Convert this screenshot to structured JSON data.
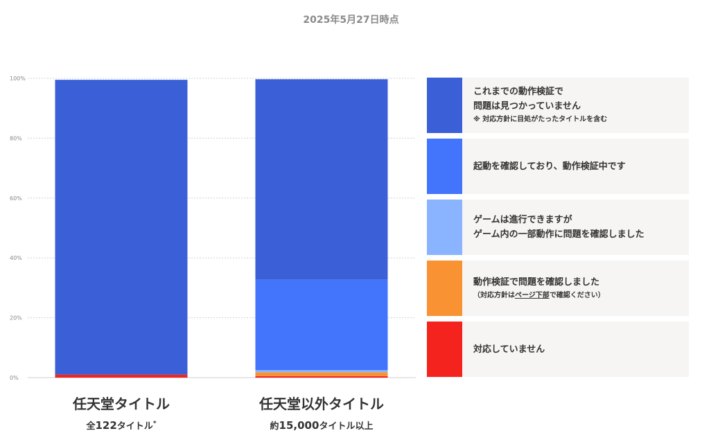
{
  "header": {
    "date": "2025年5月27日時点"
  },
  "chart_data": {
    "type": "bar",
    "stacked": true,
    "categories": [
      "任天堂タイトル",
      "任天堂以外タイトル"
    ],
    "category_subtitles": [
      {
        "prefix": "全",
        "number": "122",
        "suffix": "タイトル",
        "mark": "*"
      },
      {
        "prefix": "約",
        "number": "15,000",
        "suffix": "タイトル以上",
        "mark": ""
      }
    ],
    "ylim": [
      0,
      100
    ],
    "yticks": [
      "0%",
      "20%",
      "40%",
      "60%",
      "80%",
      "100%"
    ],
    "grid": true,
    "series": [
      {
        "name": "対応していません",
        "color": "#f5231e",
        "values": [
          1.0,
          0.5
        ]
      },
      {
        "name": "動作検証で問題を確認しました",
        "color": "#f89232",
        "values": [
          0,
          1.3
        ]
      },
      {
        "name": "ゲームは進行できますが ゲーム内の一部動作に問題を確認しました",
        "color": "#8ab4ff",
        "values": [
          0,
          0.7
        ]
      },
      {
        "name": "起動を確認しており、動作検証中です",
        "color": "#4374fc",
        "values": [
          0,
          30.2
        ]
      },
      {
        "name": "これまでの動作検証で 問題は見つかっていません",
        "color": "#3a5fd6",
        "values": [
          98.5,
          67.0
        ]
      }
    ]
  },
  "legend": [
    {
      "color": "#3a5fd6",
      "lines": [
        "これまでの動作検証で",
        "問題は見つかっていません"
      ],
      "note": "※ 対応方針に目処がたったタイトルを含む"
    },
    {
      "color": "#4374fc",
      "lines": [
        "起動を確認しており、動作検証中です"
      ],
      "note": ""
    },
    {
      "color": "#8ab4ff",
      "lines": [
        "ゲームは進行できますが",
        "ゲーム内の一部動作に問題を確認しました"
      ],
      "note": ""
    },
    {
      "color": "#f89232",
      "lines": [
        "動作検証で問題を確認しました"
      ],
      "note_parts": [
        "（対応方針は",
        "ページ下部",
        "で確認ください）"
      ]
    },
    {
      "color": "#f5231e",
      "lines": [
        "対応していません"
      ],
      "note": ""
    }
  ]
}
